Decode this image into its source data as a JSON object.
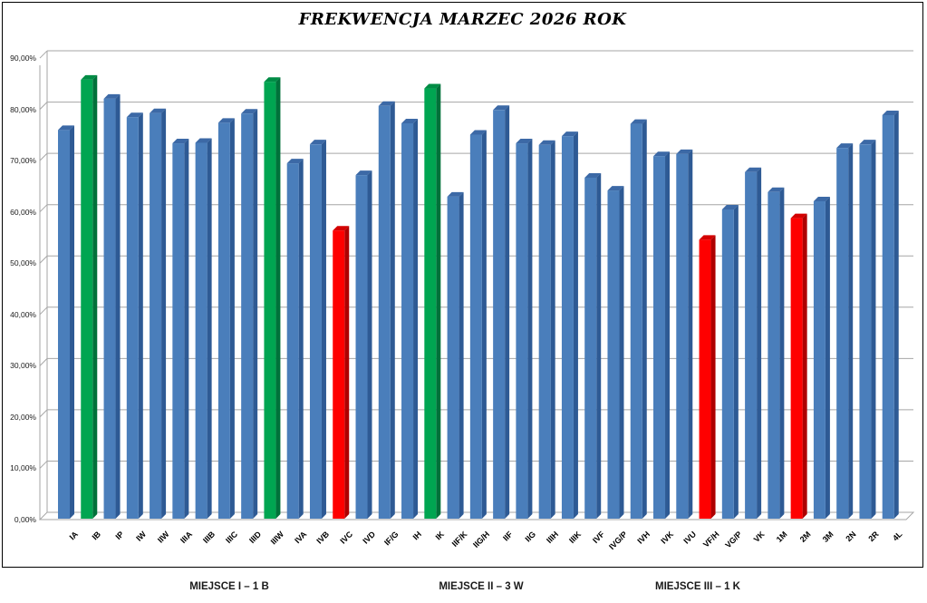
{
  "title": "FREKWENCJA MARZEC 2026 ROK",
  "footer": {
    "place1": "MIEJSCE I – 1 B",
    "place2": "MIEJSCE II – 3 W",
    "place3": "MIEJSCE III – 1 K"
  },
  "chart_data": {
    "type": "bar",
    "title": "FREKWENCJA MARZEC 2026 ROK",
    "xlabel": "",
    "ylabel": "",
    "ylim": [
      0,
      90
    ],
    "grid": true,
    "legend": "none",
    "y_ticks": [
      "0,00%",
      "10,00%",
      "20,00%",
      "30,00%",
      "40,00%",
      "50,00%",
      "60,00%",
      "70,00%",
      "80,00%",
      "90,00%"
    ],
    "categories": [
      "IA",
      "IB",
      "IP",
      "IW",
      "IIW",
      "IIIA",
      "IIIB",
      "IIIC",
      "IIID",
      "IIIW",
      "IVA",
      "IVB",
      "IVC",
      "IVD",
      "IF/G",
      "IH",
      "IK",
      "IIF/K",
      "IIG/H",
      "IIF",
      "IIG",
      "IIIH",
      "IIIK",
      "IVF",
      "IVG/P",
      "IVH",
      "IVK",
      "IVU",
      "VF/H",
      "VG/P",
      "VK",
      "1M",
      "2M",
      "3M",
      "2N",
      "2R",
      "4L"
    ],
    "values": [
      75.8,
      85.6,
      81.9,
      78.3,
      79.1,
      73.2,
      73.3,
      77.2,
      79.0,
      85.2,
      69.3,
      73.0,
      56.2,
      67.0,
      80.5,
      77.1,
      83.9,
      62.8,
      74.9,
      79.7,
      73.2,
      72.9,
      74.6,
      66.5,
      64.0,
      77.0,
      70.7,
      71.1,
      54.4,
      60.3,
      67.6,
      63.7,
      58.6,
      61.9,
      72.3,
      73.0,
      78.7
    ],
    "bar_colors": [
      "blue",
      "green",
      "blue",
      "blue",
      "blue",
      "blue",
      "blue",
      "blue",
      "blue",
      "green",
      "blue",
      "blue",
      "red",
      "blue",
      "blue",
      "blue",
      "green",
      "blue",
      "blue",
      "blue",
      "blue",
      "blue",
      "blue",
      "blue",
      "blue",
      "blue",
      "blue",
      "blue",
      "red",
      "blue",
      "blue",
      "blue",
      "red",
      "blue",
      "blue",
      "blue",
      "blue"
    ],
    "highlights": {
      "top3_green": [
        "IB",
        "IIIW",
        "IK"
      ],
      "bottom3_red": [
        "IVC",
        "VF/H",
        "2M"
      ]
    },
    "colors": {
      "blue": {
        "face": "#4a7ebb",
        "side": "#2e5a94",
        "top": "#3c69a6"
      },
      "green": {
        "face": "#00a551",
        "side": "#00713a",
        "top": "#008c45"
      },
      "red": {
        "face": "#fe0000",
        "side": "#ae0000",
        "top": "#d40000"
      },
      "gridline": "#a6a6a6",
      "wall": "#a6a6a6"
    }
  }
}
